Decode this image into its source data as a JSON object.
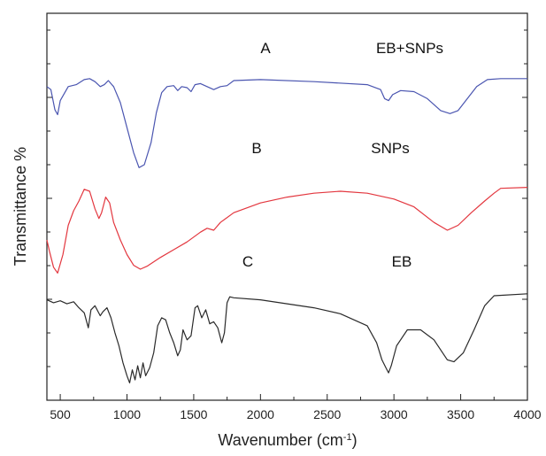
{
  "chart_data": {
    "type": "line",
    "xlabel": "Wavenumber (cm-1)",
    "xlabel_main": "Wavenumber (cm",
    "xlabel_sup": "-1",
    "xlabel_close": ")",
    "ylabel": "Transmittance %",
    "xlim": [
      400,
      4000
    ],
    "xticks": [
      500,
      1000,
      1500,
      2000,
      2500,
      3000,
      3500,
      4000
    ],
    "grid": false,
    "legend": "none",
    "annotations": [
      {
        "text": "A",
        "x": 2050,
        "curve": "A"
      },
      {
        "text": "EB+SNPs",
        "x": 3150,
        "curve": "A"
      },
      {
        "text": "B",
        "x": 1950,
        "curve": "B"
      },
      {
        "text": "SNPs",
        "x": 3100,
        "curve": "B"
      },
      {
        "text": "C",
        "x": 1950,
        "curve": "C"
      },
      {
        "text": "EB",
        "x": 3100,
        "curve": "C"
      }
    ],
    "series": [
      {
        "label": "A",
        "color": "#4a55b0",
        "points": [
          [
            400,
            0.86
          ],
          [
            430,
            0.83
          ],
          [
            460,
            0.63
          ],
          [
            480,
            0.58
          ],
          [
            500,
            0.72
          ],
          [
            560,
            0.86
          ],
          [
            620,
            0.88
          ],
          [
            680,
            0.93
          ],
          [
            720,
            0.94
          ],
          [
            760,
            0.91
          ],
          [
            800,
            0.86
          ],
          [
            830,
            0.88
          ],
          [
            860,
            0.92
          ],
          [
            900,
            0.86
          ],
          [
            950,
            0.7
          ],
          [
            1000,
            0.45
          ],
          [
            1050,
            0.2
          ],
          [
            1090,
            0.05
          ],
          [
            1130,
            0.08
          ],
          [
            1180,
            0.3
          ],
          [
            1220,
            0.6
          ],
          [
            1260,
            0.8
          ],
          [
            1300,
            0.86
          ],
          [
            1350,
            0.87
          ],
          [
            1380,
            0.82
          ],
          [
            1410,
            0.86
          ],
          [
            1450,
            0.85
          ],
          [
            1480,
            0.81
          ],
          [
            1510,
            0.88
          ],
          [
            1550,
            0.89
          ],
          [
            1600,
            0.86
          ],
          [
            1650,
            0.83
          ],
          [
            1700,
            0.86
          ],
          [
            1750,
            0.87
          ],
          [
            1800,
            0.92
          ],
          [
            2000,
            0.93
          ],
          [
            2400,
            0.91
          ],
          [
            2800,
            0.88
          ],
          [
            2900,
            0.83
          ],
          [
            2930,
            0.74
          ],
          [
            2960,
            0.72
          ],
          [
            2990,
            0.78
          ],
          [
            3050,
            0.82
          ],
          [
            3150,
            0.81
          ],
          [
            3250,
            0.74
          ],
          [
            3350,
            0.62
          ],
          [
            3420,
            0.59
          ],
          [
            3480,
            0.62
          ],
          [
            3550,
            0.74
          ],
          [
            3620,
            0.86
          ],
          [
            3700,
            0.93
          ],
          [
            3800,
            0.94
          ],
          [
            4000,
            0.94
          ]
        ]
      },
      {
        "label": "B",
        "color": "#e3373f",
        "points": [
          [
            400,
            0.4
          ],
          [
            420,
            0.28
          ],
          [
            450,
            0.12
          ],
          [
            480,
            0.06
          ],
          [
            520,
            0.25
          ],
          [
            560,
            0.55
          ],
          [
            600,
            0.7
          ],
          [
            640,
            0.8
          ],
          [
            680,
            0.92
          ],
          [
            720,
            0.9
          ],
          [
            760,
            0.72
          ],
          [
            790,
            0.62
          ],
          [
            810,
            0.68
          ],
          [
            840,
            0.84
          ],
          [
            870,
            0.78
          ],
          [
            900,
            0.58
          ],
          [
            950,
            0.4
          ],
          [
            1000,
            0.25
          ],
          [
            1050,
            0.14
          ],
          [
            1100,
            0.1
          ],
          [
            1150,
            0.13
          ],
          [
            1250,
            0.22
          ],
          [
            1350,
            0.3
          ],
          [
            1450,
            0.38
          ],
          [
            1550,
            0.48
          ],
          [
            1600,
            0.52
          ],
          [
            1650,
            0.5
          ],
          [
            1700,
            0.58
          ],
          [
            1800,
            0.68
          ],
          [
            2000,
            0.78
          ],
          [
            2200,
            0.84
          ],
          [
            2400,
            0.88
          ],
          [
            2600,
            0.9
          ],
          [
            2800,
            0.88
          ],
          [
            3000,
            0.82
          ],
          [
            3150,
            0.74
          ],
          [
            3300,
            0.58
          ],
          [
            3400,
            0.5
          ],
          [
            3480,
            0.55
          ],
          [
            3580,
            0.68
          ],
          [
            3680,
            0.8
          ],
          [
            3750,
            0.88
          ],
          [
            3800,
            0.93
          ],
          [
            4000,
            0.94
          ]
        ]
      },
      {
        "label": "C",
        "color": "#2a2a2a",
        "points": [
          [
            400,
            0.88
          ],
          [
            450,
            0.85
          ],
          [
            500,
            0.87
          ],
          [
            550,
            0.84
          ],
          [
            600,
            0.86
          ],
          [
            640,
            0.8
          ],
          [
            680,
            0.75
          ],
          [
            710,
            0.6
          ],
          [
            730,
            0.78
          ],
          [
            760,
            0.82
          ],
          [
            800,
            0.72
          ],
          [
            820,
            0.76
          ],
          [
            850,
            0.8
          ],
          [
            880,
            0.7
          ],
          [
            910,
            0.55
          ],
          [
            940,
            0.42
          ],
          [
            970,
            0.25
          ],
          [
            1000,
            0.12
          ],
          [
            1020,
            0.05
          ],
          [
            1040,
            0.18
          ],
          [
            1060,
            0.08
          ],
          [
            1080,
            0.22
          ],
          [
            1100,
            0.1
          ],
          [
            1120,
            0.25
          ],
          [
            1140,
            0.12
          ],
          [
            1170,
            0.2
          ],
          [
            1200,
            0.35
          ],
          [
            1230,
            0.62
          ],
          [
            1260,
            0.7
          ],
          [
            1290,
            0.68
          ],
          [
            1320,
            0.55
          ],
          [
            1350,
            0.45
          ],
          [
            1380,
            0.32
          ],
          [
            1400,
            0.38
          ],
          [
            1420,
            0.58
          ],
          [
            1450,
            0.48
          ],
          [
            1480,
            0.52
          ],
          [
            1510,
            0.8
          ],
          [
            1530,
            0.82
          ],
          [
            1560,
            0.7
          ],
          [
            1590,
            0.78
          ],
          [
            1620,
            0.64
          ],
          [
            1650,
            0.66
          ],
          [
            1680,
            0.6
          ],
          [
            1710,
            0.45
          ],
          [
            1730,
            0.55
          ],
          [
            1750,
            0.85
          ],
          [
            1770,
            0.91
          ],
          [
            1800,
            0.9
          ],
          [
            2000,
            0.88
          ],
          [
            2200,
            0.84
          ],
          [
            2400,
            0.8
          ],
          [
            2600,
            0.74
          ],
          [
            2800,
            0.62
          ],
          [
            2870,
            0.45
          ],
          [
            2910,
            0.28
          ],
          [
            2940,
            0.2
          ],
          [
            2960,
            0.15
          ],
          [
            2980,
            0.22
          ],
          [
            3020,
            0.42
          ],
          [
            3100,
            0.58
          ],
          [
            3200,
            0.58
          ],
          [
            3300,
            0.48
          ],
          [
            3400,
            0.28
          ],
          [
            3450,
            0.26
          ],
          [
            3520,
            0.35
          ],
          [
            3600,
            0.58
          ],
          [
            3680,
            0.82
          ],
          [
            3750,
            0.92
          ],
          [
            4000,
            0.94
          ]
        ]
      }
    ]
  }
}
